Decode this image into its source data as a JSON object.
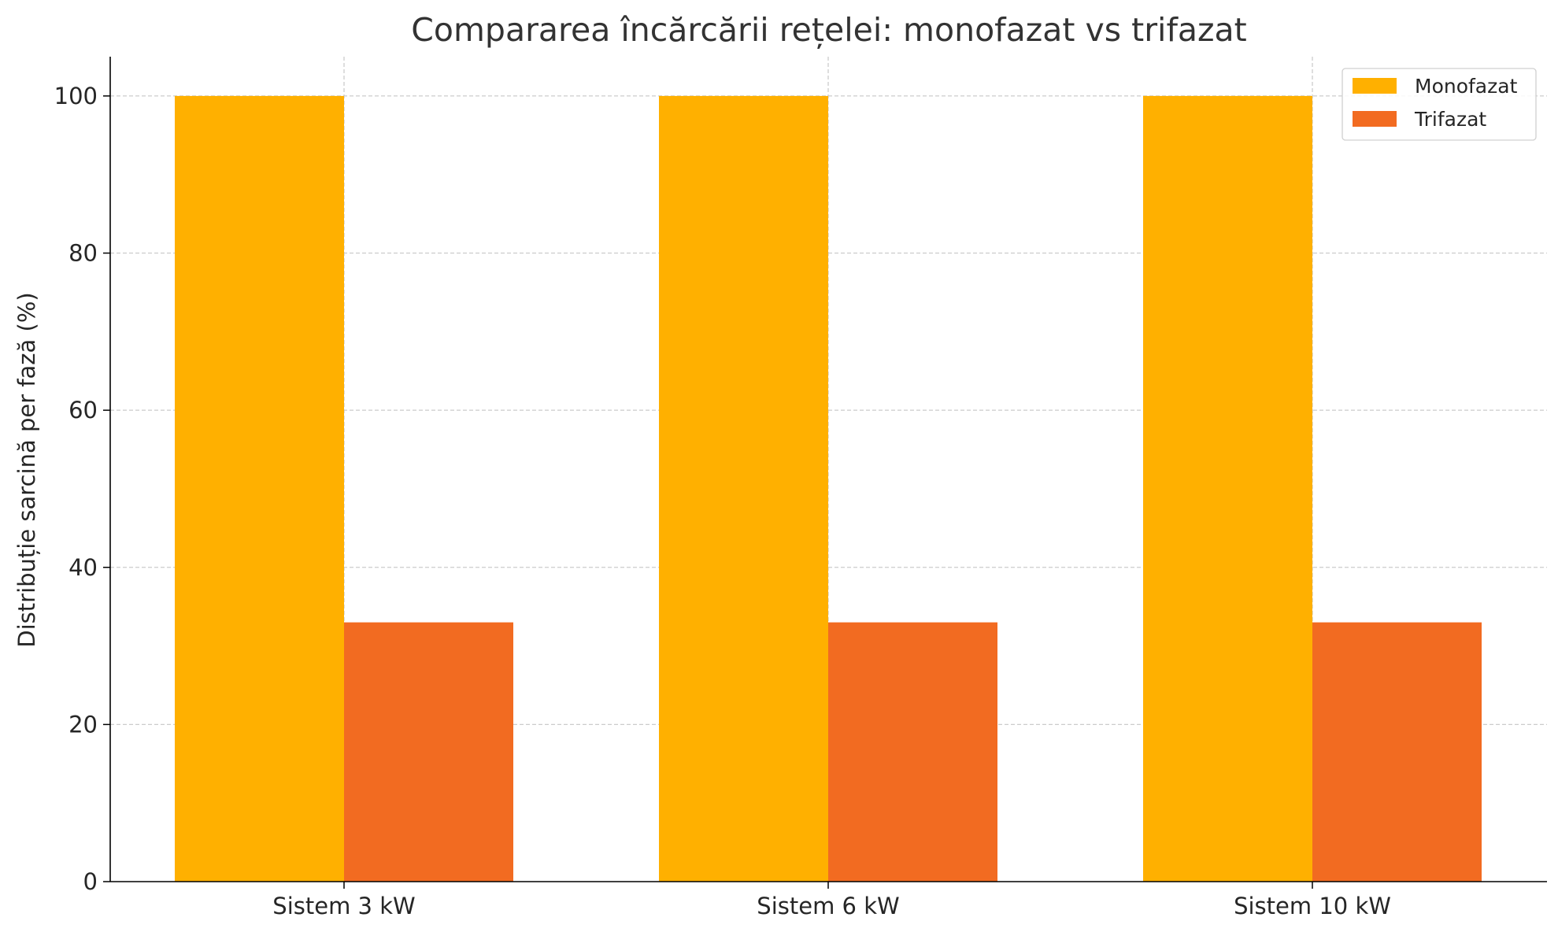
{
  "chart_data": {
    "type": "bar",
    "title": "Compararea încărcării rețelei: monofazat vs trifazat",
    "xlabel": "",
    "ylabel": "Distribuție sarcină per fază (%)",
    "categories": [
      "Sistem 3 kW",
      "Sistem 6 kW",
      "Sistem 10 kW"
    ],
    "series": [
      {
        "name": "Monofazat",
        "values": [
          100,
          100,
          100
        ],
        "color": "#FFB000"
      },
      {
        "name": "Trifazat",
        "values": [
          33,
          33,
          33
        ],
        "color": "#F26B21"
      }
    ],
    "ylim": [
      0,
      105
    ],
    "yticks": [
      0,
      20,
      40,
      60,
      80,
      100
    ],
    "grid": true,
    "legend": "top-right"
  }
}
